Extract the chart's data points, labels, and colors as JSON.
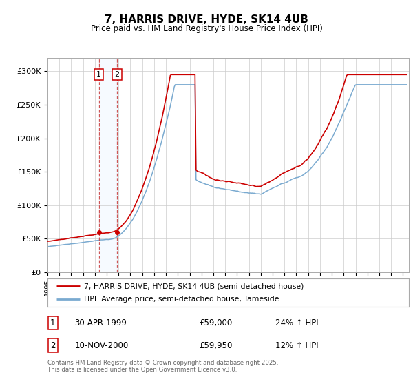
{
  "title": "7, HARRIS DRIVE, HYDE, SK14 4UB",
  "subtitle": "Price paid vs. HM Land Registry's House Price Index (HPI)",
  "ylabel_ticks": [
    "£0",
    "£50K",
    "£100K",
    "£150K",
    "£200K",
    "£250K",
    "£300K"
  ],
  "ytick_values": [
    0,
    50000,
    100000,
    150000,
    200000,
    250000,
    300000
  ],
  "ylim": [
    0,
    320000
  ],
  "xlim_start": 1995.0,
  "xlim_end": 2025.5,
  "line1_color": "#cc0000",
  "line2_color": "#7aaad0",
  "legend1": "7, HARRIS DRIVE, HYDE, SK14 4UB (semi-detached house)",
  "legend2": "HPI: Average price, semi-detached house, Tameside",
  "transaction1_x": 1999.33,
  "transaction1_y": 59000,
  "transaction2_x": 2000.87,
  "transaction2_y": 59950,
  "marker_color": "#cc0000",
  "vline_color": "#cc4444",
  "shade_color": "#ddeeff",
  "footnote": "Contains HM Land Registry data © Crown copyright and database right 2025.\nThis data is licensed under the Open Government Licence v3.0.",
  "table_rows": [
    {
      "num": "1",
      "date": "30-APR-1999",
      "price": "£59,000",
      "hpi": "24% ↑ HPI"
    },
    {
      "num": "2",
      "date": "10-NOV-2000",
      "price": "£59,950",
      "hpi": "12% ↑ HPI"
    }
  ],
  "bg_color": "#f0f4f8"
}
